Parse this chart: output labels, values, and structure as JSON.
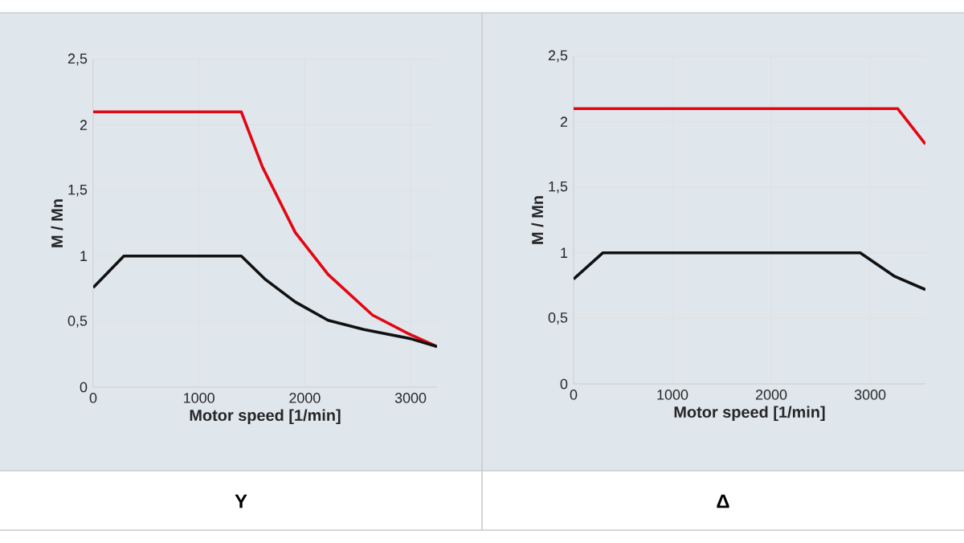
{
  "chart_data": [
    {
      "type": "line",
      "xlabel": "Motor speed [1/min]",
      "ylabel": "M / Mn",
      "annotations": [
        "Y"
      ],
      "grid": true,
      "xlim": [
        0,
        3250
      ],
      "ylim": [
        0,
        2.5
      ],
      "xticks": [
        0,
        1000,
        2000,
        3000
      ],
      "yticks": [
        0,
        {
          "value": 0.5,
          "label": "0,5"
        },
        1,
        {
          "value": 1.5,
          "label": "1,5"
        },
        2,
        {
          "value": 2.5,
          "label": "2,5"
        }
      ],
      "series": [
        {
          "color": "#e30613",
          "x": [
            0,
            1400,
            1600,
            1910,
            2220,
            2640,
            3000,
            3250
          ],
          "values": [
            2.1,
            2.1,
            1.68,
            1.18,
            0.86,
            0.55,
            0.4,
            0.31
          ]
        },
        {
          "color": "#111111",
          "x": [
            0,
            290,
            1400,
            1630,
            1910,
            2220,
            2560,
            3000,
            3250
          ],
          "values": [
            0.76,
            1.0,
            1.0,
            0.82,
            0.65,
            0.51,
            0.44,
            0.37,
            0.31
          ]
        }
      ]
    },
    {
      "type": "line",
      "xlabel": "Motor speed [1/min]",
      "ylabel": "M / Mn",
      "annotations": [
        "Δ"
      ],
      "grid": true,
      "xlim": [
        0,
        3560
      ],
      "ylim": [
        0,
        2.5
      ],
      "xticks": [
        0,
        1000,
        2000,
        3000
      ],
      "yticks": [
        0,
        {
          "value": 0.5,
          "label": "0,5"
        },
        1,
        {
          "value": 1.5,
          "label": "1,5"
        },
        2,
        {
          "value": 2.5,
          "label": "2,5"
        }
      ],
      "series": [
        {
          "color": "#e30613",
          "x": [
            0,
            3280,
            3560
          ],
          "values": [
            2.1,
            2.1,
            1.83
          ]
        },
        {
          "color": "#111111",
          "x": [
            0,
            295,
            2900,
            3250,
            3560
          ],
          "values": [
            0.8,
            1.0,
            1.0,
            0.82,
            0.72
          ]
        }
      ]
    }
  ]
}
